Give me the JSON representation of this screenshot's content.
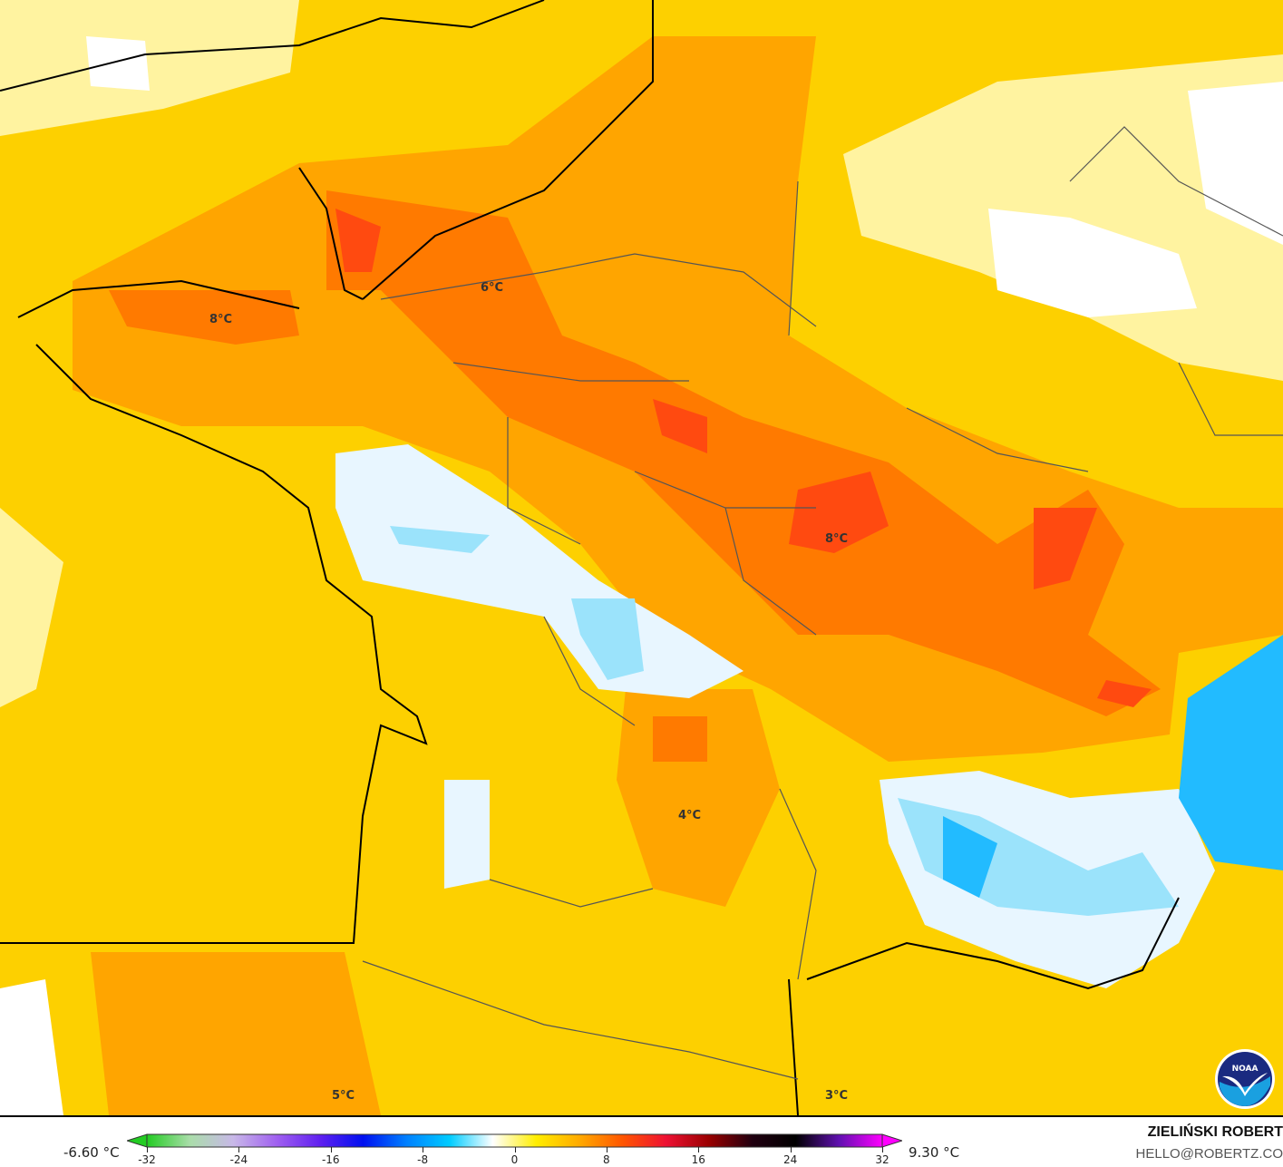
{
  "map": {
    "contour_labels": [
      {
        "text": "6°C",
        "cls": "l1"
      },
      {
        "text": "8°C",
        "cls": "l2"
      },
      {
        "text": "8°C",
        "cls": "l3"
      },
      {
        "text": "4°C",
        "cls": "l4"
      },
      {
        "text": "5°C",
        "cls": "l5"
      },
      {
        "text": "3°C",
        "cls": "l6"
      }
    ],
    "logo": "NOAA"
  },
  "colorbar": {
    "min_label": "-6.60 °C",
    "max_label": "9.30 °C",
    "range": [
      -32,
      32
    ],
    "ticks": [
      "-32",
      "-24",
      "-16",
      "-8",
      "0",
      "8",
      "16",
      "24",
      "32"
    ],
    "colors": [
      "#22cc22",
      "#aaddaa",
      "#c8b8e8",
      "#a060f0",
      "#6020f0",
      "#0010f0",
      "#0080ff",
      "#00ccff",
      "#ffffff",
      "#ffee00",
      "#ffaa00",
      "#ff5500",
      "#ee1133",
      "#990000",
      "#200010",
      "#000000",
      "#6010b0",
      "#ff00ff"
    ]
  },
  "credit": {
    "author": "ZIELIŃSKI ROBERT",
    "email": "HELLO@ROBERTZ.CO"
  }
}
